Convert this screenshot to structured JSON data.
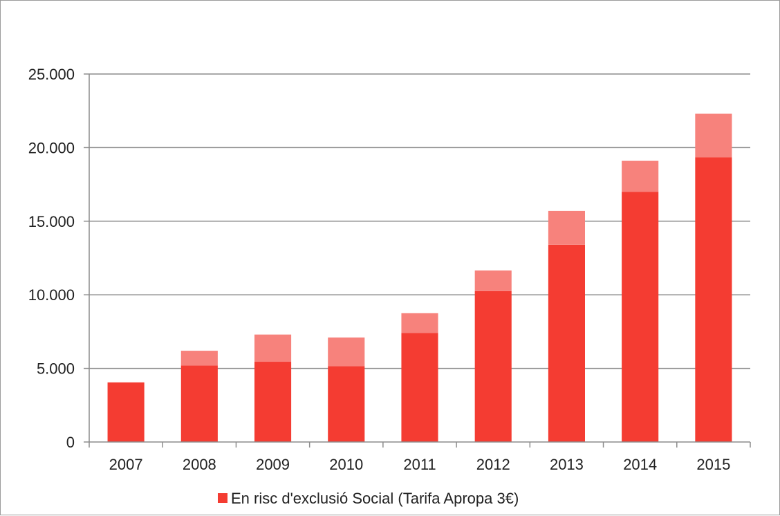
{
  "chart_data": {
    "type": "bar",
    "stacked": true,
    "categories": [
      "2007",
      "2008",
      "2009",
      "2010",
      "2011",
      "2012",
      "2013",
      "2014",
      "2015"
    ],
    "series": [
      {
        "name": "En risc d'exclusió Social (Tarifa Apropa 3€)",
        "color": "#f43c32",
        "values": [
          4050,
          5200,
          5450,
          5150,
          7400,
          10250,
          13400,
          17000,
          19350
        ]
      },
      {
        "color": "#f7827c",
        "values": [
          0,
          1000,
          1850,
          1950,
          1350,
          1400,
          2300,
          2100,
          2950
        ]
      }
    ],
    "title": "",
    "xlabel": "",
    "ylabel": "",
    "ylim": [
      0,
      25000
    ],
    "yticks": [
      0,
      5000,
      10000,
      15000,
      20000,
      25000
    ],
    "ytick_labels": [
      "0",
      "5.000",
      "10.000",
      "15.000",
      "20.000",
      "25.000"
    ],
    "grid": true,
    "legend_position": "bottom"
  }
}
